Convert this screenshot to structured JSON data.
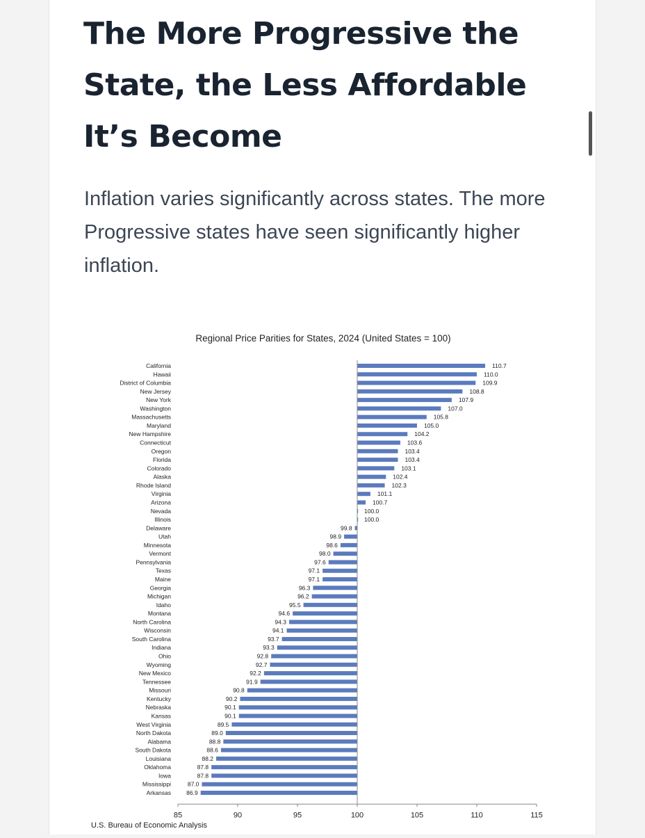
{
  "article": {
    "headline_lines": [
      "The More Progressive the",
      "State, the Less Affordable",
      "It’s Become"
    ],
    "subheading": "Inflation varies significantly across states. The more Progressive states have seen significantly higher inflation."
  },
  "colors": {
    "bar": "#5b7bbd",
    "axis": "#888888",
    "headline": "#1a2330",
    "text": "#3c4654"
  },
  "chart_data": {
    "type": "bar",
    "orientation": "horizontal",
    "title": "Regional Price Parities for States, 2024 (United States = 100)",
    "xlabel": "",
    "ylabel": "",
    "baseline": 100,
    "xlim": [
      85,
      115
    ],
    "xticks": [
      85,
      90,
      95,
      100,
      105,
      110,
      115
    ],
    "grid": false,
    "categories": [
      "California",
      "Hawaii",
      "District of Columbia",
      "New Jersey",
      "New York",
      "Washington",
      "Massachusetts",
      "Maryland",
      "New Hampshire",
      "Connecticut",
      "Oregon",
      "Florida",
      "Colorado",
      "Alaska",
      "Rhode Island",
      "Virginia",
      "Arizona",
      "Nevada",
      "Illinois",
      "Delaware",
      "Utah",
      "Minnesota",
      "Vermont",
      "Pennsylvania",
      "Texas",
      "Maine",
      "Georgia",
      "Michigan",
      "Idaho",
      "Montana",
      "North Carolina",
      "Wisconsin",
      "South Carolina",
      "Indiana",
      "Ohio",
      "Wyoming",
      "New Mexico",
      "Tennessee",
      "Missouri",
      "Kentucky",
      "Nebraska",
      "Kansas",
      "West Virginia",
      "North Dakota",
      "Alabama",
      "South Dakota",
      "Louisiana",
      "Oklahoma",
      "Iowa",
      "Mississippi",
      "Arkansas"
    ],
    "values": [
      110.7,
      110.0,
      109.9,
      108.8,
      107.9,
      107.0,
      105.8,
      105.0,
      104.2,
      103.6,
      103.4,
      103.4,
      103.1,
      102.4,
      102.3,
      101.1,
      100.7,
      100.0,
      100.0,
      99.8,
      98.9,
      98.6,
      98.0,
      97.6,
      97.1,
      97.1,
      96.3,
      96.2,
      95.5,
      94.6,
      94.3,
      94.1,
      93.7,
      93.3,
      92.8,
      92.7,
      92.2,
      91.9,
      90.8,
      90.2,
      90.1,
      90.1,
      89.5,
      89.0,
      88.8,
      88.6,
      88.2,
      87.8,
      87.8,
      87.0,
      86.9
    ],
    "value_labels": [
      "110.7",
      "110.0",
      "109.9",
      "108.8",
      "107.9",
      "107.0",
      "105.8",
      "105.0",
      "104.2",
      "103.6",
      "103.4",
      "103.4",
      "103.1",
      "102.4",
      "102.3",
      "101.1",
      "100.7",
      "100.0",
      "100.0",
      "99.8",
      "98.9",
      "98.6",
      "98.0",
      "97.6",
      "97.1",
      "97.1",
      "96.3",
      "96.2",
      "95.5",
      "94.6",
      "94.3",
      "94.1",
      "93.7",
      "93.3",
      "92.8",
      "92.7",
      "92.2",
      "91.9",
      "90.8",
      "90.2",
      "90.1",
      "90.1",
      "89.5",
      "89.0",
      "88.8",
      "88.6",
      "88.2",
      "87.8",
      "87.8",
      "87.0",
      "86.9"
    ],
    "source": "U.S. Bureau of Economic Analysis"
  }
}
